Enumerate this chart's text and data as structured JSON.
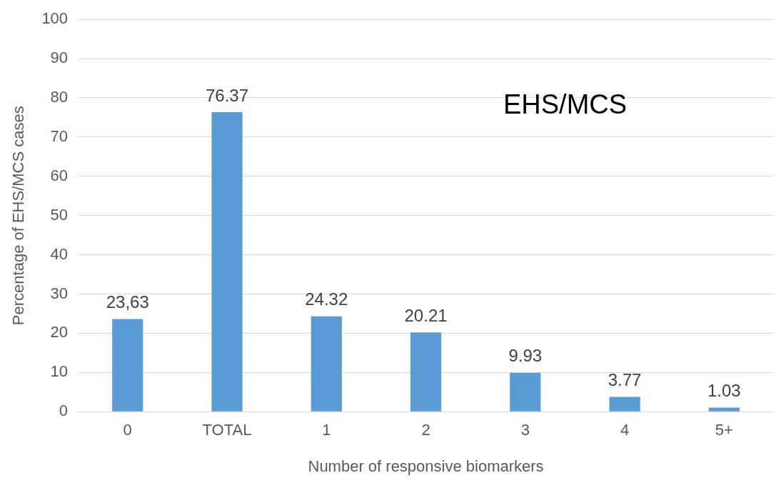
{
  "chart_data": {
    "type": "bar",
    "xlabel": "Number of responsive biomarkers",
    "ylabel": "Percentage of EHS/MCS cases",
    "categories": [
      "0",
      "TOTAL",
      "1",
      "2",
      "3",
      "4",
      "5+"
    ],
    "values": [
      23.63,
      76.37,
      24.32,
      20.21,
      9.93,
      3.77,
      1.03
    ],
    "value_labels": [
      "23,63",
      "76.37",
      "24.32",
      "20.21",
      "9.93",
      "3.77",
      "1.03"
    ],
    "color": "#5b9bd5",
    "ylim": [
      0,
      100
    ],
    "yticks": [
      0,
      10,
      20,
      30,
      40,
      50,
      60,
      70,
      80,
      90,
      100
    ],
    "grid": "y",
    "legend": false,
    "annotations": [
      "EHS/MCS"
    ]
  }
}
